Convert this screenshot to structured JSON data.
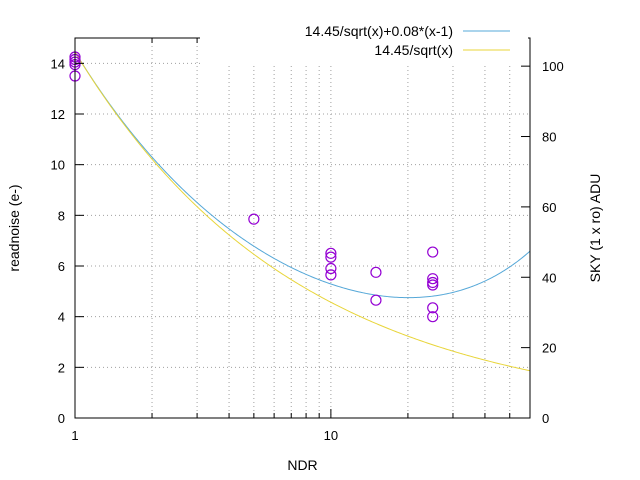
{
  "chart_data": {
    "type": "scatter",
    "title": "",
    "xlabel": "NDR",
    "ylabel": "readnoise (e-)",
    "y2label": "SKY (1 x ro) ADU",
    "xscale": "log",
    "xlim": [
      1,
      60
    ],
    "ylim": [
      0,
      15
    ],
    "y2lim": [
      0,
      108
    ],
    "grid": true,
    "legend_position": "top-right",
    "x_ticks": [
      {
        "value": 1,
        "label": "1"
      },
      {
        "value": 10,
        "label": "10"
      }
    ],
    "y_ticks": [
      {
        "value": 0,
        "label": "0"
      },
      {
        "value": 2,
        "label": "2"
      },
      {
        "value": 4,
        "label": "4"
      },
      {
        "value": 6,
        "label": "6"
      },
      {
        "value": 8,
        "label": "8"
      },
      {
        "value": 10,
        "label": "10"
      },
      {
        "value": 12,
        "label": "12"
      },
      {
        "value": 14,
        "label": "14"
      }
    ],
    "y2_ticks": [
      {
        "value": 0,
        "label": "0"
      },
      {
        "value": 20,
        "label": "20"
      },
      {
        "value": 40,
        "label": "40"
      },
      {
        "value": 60,
        "label": "60"
      },
      {
        "value": 80,
        "label": "80"
      },
      {
        "value": 100,
        "label": "100"
      }
    ],
    "points": [
      {
        "x": 1,
        "y": 14.25
      },
      {
        "x": 1,
        "y": 14.15
      },
      {
        "x": 1,
        "y": 14.05
      },
      {
        "x": 1,
        "y": 13.95
      },
      {
        "x": 1,
        "y": 13.5
      },
      {
        "x": 5,
        "y": 7.85
      },
      {
        "x": 10,
        "y": 6.5
      },
      {
        "x": 10,
        "y": 6.35
      },
      {
        "x": 10,
        "y": 5.9
      },
      {
        "x": 10,
        "y": 5.65
      },
      {
        "x": 15,
        "y": 5.75
      },
      {
        "x": 15,
        "y": 4.65
      },
      {
        "x": 25,
        "y": 6.55
      },
      {
        "x": 25,
        "y": 5.5
      },
      {
        "x": 25,
        "y": 5.35
      },
      {
        "x": 25,
        "y": 5.25
      },
      {
        "x": 25,
        "y": 4.35
      },
      {
        "x": 25,
        "y": 4.0
      }
    ],
    "series": [
      {
        "name": "14.45/sqrt(x)+0.08*(x-1)",
        "a": 14.45,
        "b": 0.08,
        "color": "#56a8d8"
      },
      {
        "name": "14.45/sqrt(x)",
        "a": 14.45,
        "b": 0,
        "color": "#e8d53a"
      }
    ],
    "point_color": "#9400d3"
  }
}
